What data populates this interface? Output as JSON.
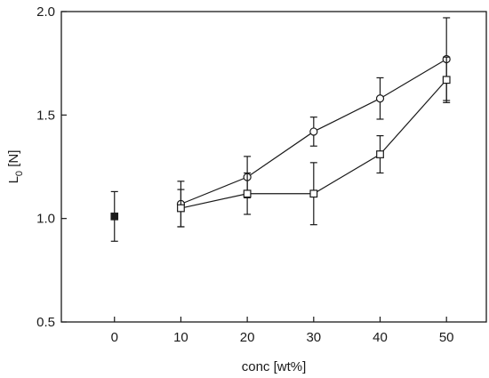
{
  "chart_data": {
    "type": "line",
    "xlabel": "conc [wt%]",
    "ylabel": {
      "main": "L",
      "subscript": "0",
      "unit": " [N]"
    },
    "xlim": [
      -8,
      56
    ],
    "ylim": [
      0.5,
      2.0
    ],
    "x_ticks": [
      0,
      10,
      20,
      30,
      40,
      50
    ],
    "x_tick_labels": [
      "0",
      "10",
      "20",
      "30",
      "40",
      "50"
    ],
    "y_ticks": [
      0.5,
      1.0,
      1.5,
      2.0
    ],
    "y_tick_labels": [
      "0.5",
      "1.0",
      "1.5",
      "2.0"
    ],
    "grid": false,
    "legend": "none",
    "colors": {
      "axes": "#1a1a1a",
      "series": "#1a1a1a",
      "marker_fill": "#ffffff",
      "reference_fill": "#1a1a1a"
    },
    "series": [
      {
        "marker": "filled-square",
        "connected": false,
        "x": [
          0
        ],
        "y": [
          1.01
        ],
        "err": [
          0.12
        ]
      },
      {
        "marker": "open-circle",
        "connected": true,
        "x": [
          10,
          20,
          30,
          40,
          50
        ],
        "y": [
          1.07,
          1.2,
          1.42,
          1.58,
          1.77
        ],
        "err": [
          0.11,
          0.1,
          0.07,
          0.1,
          0.2
        ]
      },
      {
        "marker": "open-square",
        "connected": true,
        "x": [
          10,
          20,
          30,
          40,
          50
        ],
        "y": [
          1.05,
          1.12,
          1.12,
          1.31,
          1.67
        ],
        "err": [
          0.09,
          0.1,
          0.15,
          0.09,
          0.11
        ]
      }
    ]
  }
}
